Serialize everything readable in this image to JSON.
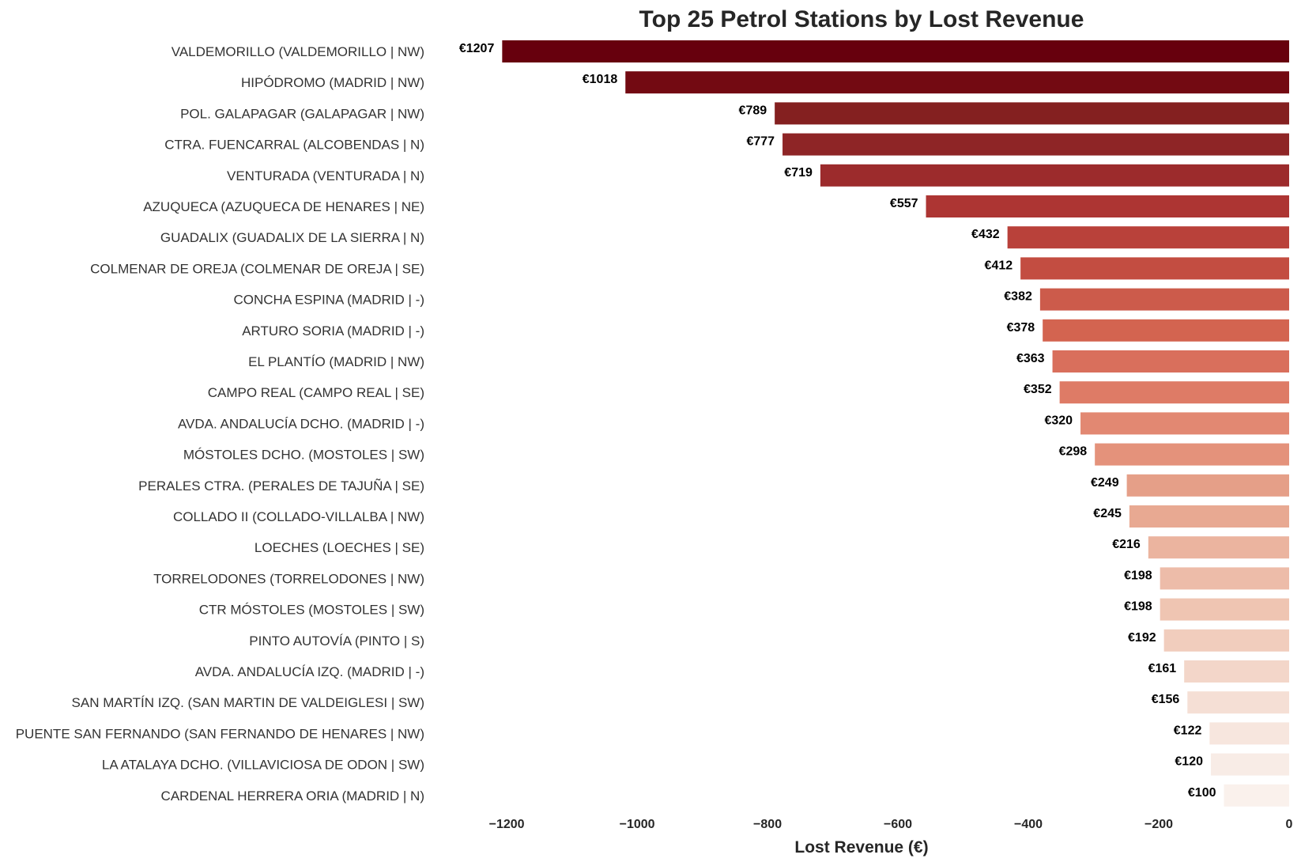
{
  "chart_data": {
    "type": "bar",
    "orientation": "horizontal",
    "title": "Top 25 Petrol Stations by Lost Revenue",
    "xlabel": "Lost Revenue (€)",
    "ylabel": "",
    "xlim": [
      -1245,
      0
    ],
    "xticks": [
      -1200,
      -1000,
      -800,
      -600,
      -400,
      -200,
      0
    ],
    "xtick_labels": [
      "−1200",
      "−1000",
      "−800",
      "−600",
      "−400",
      "−200",
      "0"
    ],
    "grid": false,
    "colormap": "Reds (dark to light)",
    "categories": [
      "VALDEMORILLO (VALDEMORILLO | NW)",
      "HIPÓDROMO (MADRID | NW)",
      "POL. GALAPAGAR (GALAPAGAR | NW)",
      "CTRA. FUENCARRAL (ALCOBENDAS | N)",
      "VENTURADA (VENTURADA | N)",
      "AZUQUECA (AZUQUECA DE HENARES | NE)",
      "GUADALIX (GUADALIX DE LA SIERRA | N)",
      "COLMENAR DE OREJA (COLMENAR DE OREJA | SE)",
      "CONCHA ESPINA (MADRID | -)",
      "ARTURO SORIA (MADRID | -)",
      "EL PLANTÍO (MADRID | NW)",
      "CAMPO REAL (CAMPO REAL | SE)",
      "AVDA. ANDALUCÍA DCHO. (MADRID | -)",
      "MÓSTOLES DCHO. (MOSTOLES | SW)",
      "PERALES CTRA. (PERALES DE TAJUÑA | SE)",
      "COLLADO II (COLLADO-VILLALBA | NW)",
      "LOECHES (LOECHES | SE)",
      "TORRELODONES (TORRELODONES | NW)",
      "CTR MÓSTOLES (MOSTOLES | SW)",
      "PINTO AUTOVÍA (PINTO | S)",
      "AVDA. ANDALUCÍA IZQ. (MADRID | -)",
      "SAN MARTÍN IZQ. (SAN MARTIN DE VALDEIGLESI | SW)",
      "PUENTE SAN FERNANDO (SAN FERNANDO DE HENARES | NW)",
      "LA ATALAYA DCHO. (VILLAVICIOSA DE ODON | SW)",
      "CARDENAL HERRERA ORIA (MADRID | N)"
    ],
    "values": [
      -1207,
      -1018,
      -789,
      -777,
      -719,
      -557,
      -432,
      -412,
      -382,
      -378,
      -363,
      -352,
      -320,
      -298,
      -249,
      -245,
      -216,
      -198,
      -198,
      -192,
      -161,
      -156,
      -122,
      -120,
      -100
    ],
    "value_labels": [
      "€1207",
      "€1018",
      "€789",
      "€777",
      "€719",
      "€557",
      "€432",
      "€412",
      "€382",
      "€378",
      "€363",
      "€352",
      "€320",
      "€298",
      "€249",
      "€245",
      "€216",
      "€198",
      "€198",
      "€192",
      "€161",
      "€156",
      "€122",
      "€120",
      "€100"
    ],
    "colors": [
      "#67000d",
      "#730a12",
      "#842020",
      "#8e2526",
      "#9c2b2c",
      "#ad3533",
      "#b9413a",
      "#c34d41",
      "#cc5b4b",
      "#d36450",
      "#d96f5c",
      "#de7b66",
      "#e28872",
      "#e4927b",
      "#e59f88",
      "#e8a992",
      "#ebb49f",
      "#edbca9",
      "#efc5b2",
      "#f1cdbd",
      "#f3d6c9",
      "#f5dfd5",
      "#f7e6de",
      "#f8ece6",
      "#faf1ec"
    ]
  }
}
